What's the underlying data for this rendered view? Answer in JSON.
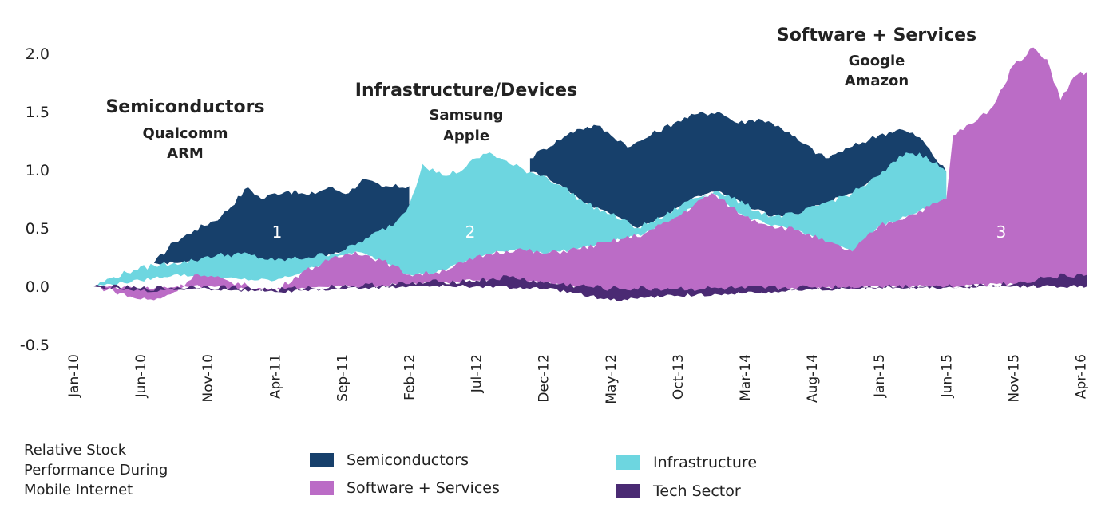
{
  "chart_data": {
    "type": "area",
    "caption": [
      "Relative Stock",
      "Performance During",
      "Mobile Internet"
    ],
    "ylim": [
      -0.5,
      2.0
    ],
    "yticks": [
      "2.0",
      "1.5",
      "1.0",
      "0.5",
      "0.0",
      "-0.5"
    ],
    "categories": [
      "Jan-10",
      "Jun-10",
      "Nov-10",
      "Apr-11",
      "Sep-11",
      "Feb-12",
      "Jul-12",
      "Dec-12",
      "May-12",
      "Oct-13",
      "Mar-14",
      "Aug-14",
      "Jan-15",
      "Jun-15",
      "Nov-15",
      "Apr-16"
    ],
    "series": [
      {
        "name": "Semiconductors",
        "color": "#17406b",
        "start": 1.2,
        "end": 5.0,
        "upper": [
          [
            1.2,
            0.2
          ],
          [
            1.5,
            0.38
          ],
          [
            1.8,
            0.48
          ],
          [
            2.2,
            0.6
          ],
          [
            2.6,
            0.85
          ],
          [
            2.8,
            0.75
          ],
          [
            3.0,
            0.8
          ],
          [
            3.2,
            0.82
          ],
          [
            3.5,
            0.78
          ],
          [
            3.8,
            0.85
          ],
          [
            4.1,
            0.8
          ],
          [
            4.3,
            0.92
          ],
          [
            4.6,
            0.85
          ],
          [
            5.0,
            0.86
          ]
        ],
        "lower": [
          [
            1.2,
            0.2
          ],
          [
            1.5,
            0.2
          ],
          [
            1.8,
            0.22
          ],
          [
            2.2,
            0.25
          ],
          [
            2.5,
            0.25
          ],
          [
            3.0,
            0.2
          ],
          [
            3.3,
            0.18
          ],
          [
            3.6,
            0.22
          ],
          [
            4.0,
            0.3
          ],
          [
            4.4,
            0.38
          ],
          [
            4.8,
            0.5
          ],
          [
            5.0,
            0.6
          ]
        ]
      },
      {
        "name": "Semiconductors",
        "color": "#17406b",
        "start": 6.8,
        "end": 13.0,
        "upper": [
          [
            6.8,
            1.1
          ],
          [
            7.0,
            1.18
          ],
          [
            7.3,
            1.28
          ],
          [
            7.5,
            1.35
          ],
          [
            7.8,
            1.38
          ],
          [
            8.0,
            1.3
          ],
          [
            8.3,
            1.2
          ],
          [
            8.6,
            1.3
          ],
          [
            9.0,
            1.42
          ],
          [
            9.3,
            1.48
          ],
          [
            9.6,
            1.5
          ],
          [
            9.9,
            1.4
          ],
          [
            10.2,
            1.44
          ],
          [
            10.5,
            1.38
          ],
          [
            10.8,
            1.25
          ],
          [
            11.2,
            1.1
          ],
          [
            11.6,
            1.2
          ],
          [
            12.0,
            1.3
          ],
          [
            12.3,
            1.35
          ],
          [
            12.6,
            1.28
          ],
          [
            13.0,
            0.98
          ]
        ],
        "lower": [
          [
            6.8,
            0.98
          ],
          [
            7.0,
            0.95
          ],
          [
            7.3,
            0.85
          ],
          [
            7.6,
            0.72
          ],
          [
            8.0,
            0.62
          ],
          [
            8.4,
            0.5
          ],
          [
            8.8,
            0.6
          ],
          [
            9.2,
            0.75
          ],
          [
            9.6,
            0.82
          ],
          [
            10.0,
            0.7
          ],
          [
            10.4,
            0.6
          ],
          [
            10.8,
            0.62
          ],
          [
            11.2,
            0.72
          ],
          [
            11.6,
            0.8
          ],
          [
            12.0,
            0.95
          ],
          [
            12.4,
            1.0
          ],
          [
            13.0,
            0.98
          ]
        ]
      },
      {
        "name": "Infrastructure",
        "color": "#6dd6e0",
        "start": 0.3,
        "end": 13.0,
        "upper": [
          [
            0.3,
            0.0
          ],
          [
            0.6,
            0.08
          ],
          [
            0.9,
            0.14
          ],
          [
            1.2,
            0.18
          ],
          [
            1.5,
            0.2
          ],
          [
            1.8,
            0.22
          ],
          [
            2.0,
            0.26
          ],
          [
            2.5,
            0.28
          ],
          [
            3.0,
            0.22
          ],
          [
            3.5,
            0.25
          ],
          [
            4.0,
            0.3
          ],
          [
            4.4,
            0.42
          ],
          [
            4.8,
            0.55
          ],
          [
            5.0,
            0.7
          ],
          [
            5.2,
            1.05
          ],
          [
            5.5,
            0.95
          ],
          [
            5.8,
            1.0
          ],
          [
            6.0,
            1.1
          ],
          [
            6.2,
            1.15
          ],
          [
            6.5,
            1.05
          ],
          [
            6.8,
            0.98
          ],
          [
            7.0,
            0.95
          ],
          [
            7.3,
            0.85
          ],
          [
            7.6,
            0.72
          ],
          [
            8.0,
            0.62
          ],
          [
            8.4,
            0.5
          ],
          [
            8.8,
            0.6
          ],
          [
            9.2,
            0.75
          ],
          [
            9.6,
            0.82
          ],
          [
            10.0,
            0.7
          ],
          [
            10.4,
            0.6
          ],
          [
            10.8,
            0.62
          ],
          [
            11.2,
            0.72
          ],
          [
            11.6,
            0.8
          ],
          [
            12.0,
            0.95
          ],
          [
            12.4,
            1.15
          ],
          [
            12.7,
            1.12
          ],
          [
            13.0,
            0.98
          ]
        ],
        "lower": [
          [
            0.3,
            0.0
          ],
          [
            1.0,
            0.05
          ],
          [
            1.5,
            0.1
          ],
          [
            2.0,
            0.08
          ],
          [
            2.5,
            0.06
          ],
          [
            3.0,
            0.05
          ],
          [
            3.4,
            0.12
          ],
          [
            3.8,
            0.22
          ],
          [
            4.2,
            0.3
          ],
          [
            4.6,
            0.22
          ],
          [
            5.0,
            0.1
          ],
          [
            5.4,
            0.12
          ],
          [
            5.8,
            0.2
          ],
          [
            6.2,
            0.28
          ],
          [
            6.6,
            0.32
          ],
          [
            7.0,
            0.28
          ],
          [
            7.5,
            0.32
          ],
          [
            8.0,
            0.38
          ],
          [
            8.5,
            0.45
          ],
          [
            9.0,
            0.6
          ],
          [
            9.5,
            0.8
          ],
          [
            10.0,
            0.6
          ],
          [
            10.4,
            0.52
          ],
          [
            10.8,
            0.48
          ],
          [
            11.2,
            0.38
          ],
          [
            11.6,
            0.3
          ],
          [
            12.0,
            0.52
          ],
          [
            12.5,
            0.62
          ],
          [
            13.0,
            0.75
          ]
        ]
      },
      {
        "name": "Software + Services",
        "color": "#bb6cc6",
        "start": 0.3,
        "end": 15.1,
        "upper": [
          [
            0.3,
            0.0
          ],
          [
            0.6,
            -0.04
          ],
          [
            0.9,
            -0.1
          ],
          [
            1.2,
            -0.12
          ],
          [
            1.5,
            -0.05
          ],
          [
            1.8,
            0.1
          ],
          [
            2.0,
            0.08
          ],
          [
            2.3,
            0.05
          ],
          [
            2.6,
            0.0
          ],
          [
            3.0,
            -0.04
          ],
          [
            3.4,
            0.12
          ],
          [
            3.8,
            0.22
          ],
          [
            4.2,
            0.3
          ],
          [
            4.6,
            0.22
          ],
          [
            5.0,
            0.1
          ],
          [
            5.4,
            0.12
          ],
          [
            5.8,
            0.2
          ],
          [
            6.2,
            0.28
          ],
          [
            6.6,
            0.32
          ],
          [
            7.0,
            0.28
          ],
          [
            7.5,
            0.32
          ],
          [
            8.0,
            0.38
          ],
          [
            8.5,
            0.45
          ],
          [
            9.0,
            0.6
          ],
          [
            9.5,
            0.8
          ],
          [
            10.0,
            0.6
          ],
          [
            10.4,
            0.52
          ],
          [
            10.8,
            0.48
          ],
          [
            11.2,
            0.38
          ],
          [
            11.6,
            0.3
          ],
          [
            12.0,
            0.52
          ],
          [
            12.5,
            0.62
          ],
          [
            13.0,
            0.75
          ],
          [
            13.1,
            1.3
          ],
          [
            13.4,
            1.4
          ],
          [
            13.7,
            1.55
          ],
          [
            14.0,
            1.9
          ],
          [
            14.3,
            2.05
          ],
          [
            14.5,
            1.95
          ],
          [
            14.7,
            1.6
          ],
          [
            14.9,
            1.8
          ],
          [
            15.1,
            1.85
          ]
        ],
        "lower": [
          [
            0.3,
            0.0
          ],
          [
            1.0,
            -0.02
          ],
          [
            2.0,
            0.0
          ],
          [
            3.0,
            -0.03
          ],
          [
            4.0,
            0.0
          ],
          [
            5.0,
            0.02
          ],
          [
            6.0,
            0.05
          ],
          [
            7.0,
            0.03
          ],
          [
            8.0,
            -0.06
          ],
          [
            9.0,
            -0.05
          ],
          [
            10.0,
            -0.04
          ],
          [
            11.0,
            -0.02
          ],
          [
            12.0,
            0.0
          ],
          [
            13.0,
            0.0
          ],
          [
            14.0,
            0.02
          ],
          [
            15.1,
            0.02
          ]
        ]
      },
      {
        "name": "Tech Sector",
        "color": "#4a2a73",
        "start": 0.3,
        "end": 15.1,
        "upper": [
          [
            0.3,
            0.0
          ],
          [
            1.0,
            -0.02
          ],
          [
            2.0,
            0.0
          ],
          [
            3.0,
            -0.03
          ],
          [
            4.0,
            0.0
          ],
          [
            5.0,
            0.02
          ],
          [
            5.5,
            0.04
          ],
          [
            6.0,
            0.05
          ],
          [
            6.5,
            0.08
          ],
          [
            7.0,
            0.03
          ],
          [
            8.0,
            -0.02
          ],
          [
            9.0,
            -0.02
          ],
          [
            10.0,
            -0.02
          ],
          [
            11.0,
            -0.01
          ],
          [
            12.0,
            0.0
          ],
          [
            13.0,
            0.0
          ],
          [
            14.0,
            0.02
          ],
          [
            14.5,
            0.08
          ],
          [
            15.1,
            0.1
          ]
        ],
        "lower": [
          [
            0.3,
            0.0
          ],
          [
            1.0,
            -0.04
          ],
          [
            2.0,
            -0.02
          ],
          [
            3.0,
            -0.05
          ],
          [
            4.0,
            -0.02
          ],
          [
            5.0,
            0.0
          ],
          [
            6.0,
            0.0
          ],
          [
            7.0,
            -0.02
          ],
          [
            7.5,
            -0.06
          ],
          [
            8.0,
            -0.12
          ],
          [
            8.5,
            -0.1
          ],
          [
            9.0,
            -0.08
          ],
          [
            10.0,
            -0.06
          ],
          [
            11.0,
            -0.03
          ],
          [
            12.0,
            -0.01
          ],
          [
            13.0,
            -0.01
          ],
          [
            14.0,
            0.0
          ],
          [
            15.1,
            0.0
          ]
        ]
      }
    ],
    "annotations": [
      {
        "head": "Semiconductors",
        "subs": [
          "Qualcomm",
          "ARM"
        ],
        "region": "1"
      },
      {
        "head": "Infrastructure/Devices",
        "subs": [
          "Samsung",
          "Apple"
        ],
        "region": "2"
      },
      {
        "head": "Software + Services",
        "subs": [
          "Google",
          "Amazon"
        ],
        "region": "3"
      }
    ],
    "legend": [
      {
        "label": "Semiconductors",
        "color": "#17406b"
      },
      {
        "label": "Infrastructure",
        "color": "#6dd6e0"
      },
      {
        "label": "Software + Services",
        "color": "#bb6cc6"
      },
      {
        "label": "Tech Sector",
        "color": "#4a2a73"
      }
    ]
  }
}
